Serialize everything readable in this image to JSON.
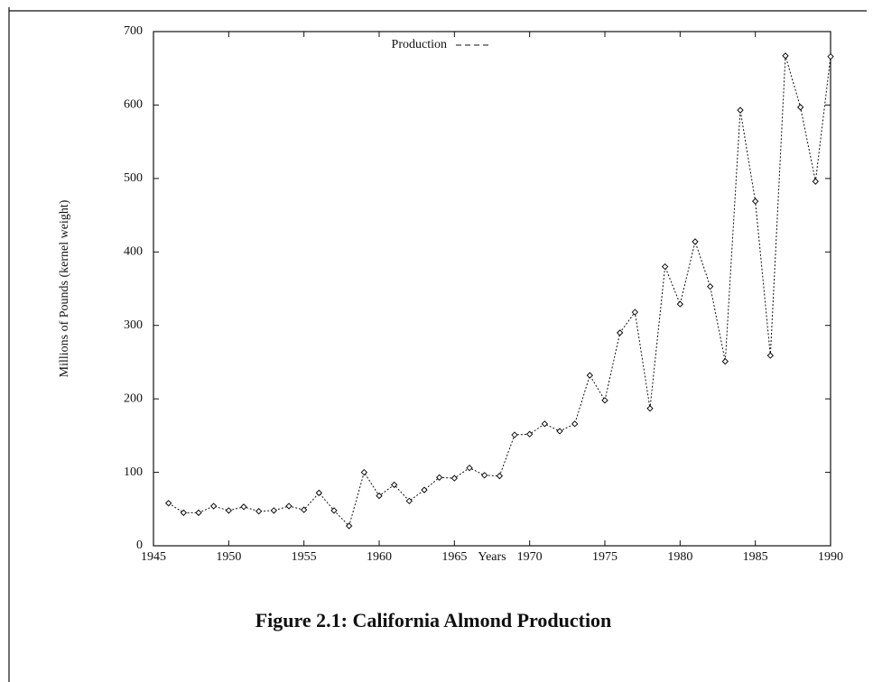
{
  "chart_data": {
    "type": "line",
    "title": "Figure 2.1: California Almond Production",
    "x_label": "Years",
    "y_label": "Millions of Pounds (kernel weight)",
    "x": [
      1946,
      1947,
      1948,
      1949,
      1950,
      1951,
      1952,
      1953,
      1954,
      1955,
      1956,
      1957,
      1958,
      1959,
      1960,
      1961,
      1962,
      1963,
      1964,
      1965,
      1966,
      1967,
      1968,
      1969,
      1970,
      1971,
      1972,
      1973,
      1974,
      1975,
      1976,
      1977,
      1978,
      1979,
      1980,
      1981,
      1982,
      1983,
      1984,
      1985,
      1986,
      1987,
      1988,
      1989,
      1990
    ],
    "series": [
      {
        "name": "Production",
        "color": "#111111",
        "values": [
          58,
          45,
          45,
          54,
          48,
          53,
          47,
          48,
          54,
          49,
          72,
          48,
          27,
          100,
          68,
          83,
          61,
          76,
          93,
          92,
          106,
          96,
          95,
          151,
          152,
          166,
          156,
          166,
          232,
          198,
          290,
          318,
          187,
          380,
          329,
          414,
          353,
          251,
          593,
          469,
          259,
          667,
          597,
          496,
          666
        ]
      }
    ],
    "xlim": [
      1945,
      1990
    ],
    "xticks": [
      1945,
      1950,
      1955,
      1960,
      1965,
      1970,
      1975,
      1980,
      1985,
      1990
    ],
    "ylim": [
      0,
      700
    ],
    "yticks": [
      0,
      100,
      200,
      300,
      400,
      500,
      600,
      700
    ],
    "legend": "top"
  }
}
